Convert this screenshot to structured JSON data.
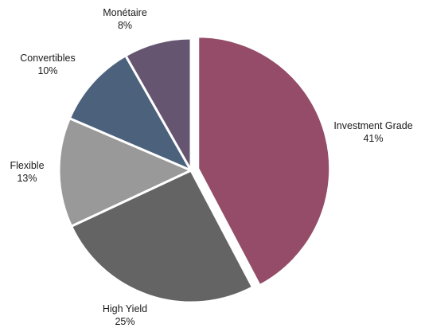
{
  "chart_data": {
    "type": "pie",
    "title": "",
    "slices": [
      {
        "label": "Investment Grade",
        "value": 41,
        "value_label": "41%",
        "color": "#944c68"
      },
      {
        "label": "High Yield",
        "value": 25,
        "value_label": "25%",
        "color": "#646464"
      },
      {
        "label": "Flexible",
        "value": 13,
        "value_label": "13%",
        "color": "#999999"
      },
      {
        "label": "Convertibles",
        "value": 10,
        "value_label": "10%",
        "color": "#4b617c"
      },
      {
        "label": "Monétaire",
        "value": 8,
        "value_label": "8%",
        "color": "#665570"
      }
    ],
    "start_angle": "12 o'clock",
    "direction": "clockwise",
    "exploded_slice": "Investment Grade",
    "legend": "none"
  }
}
